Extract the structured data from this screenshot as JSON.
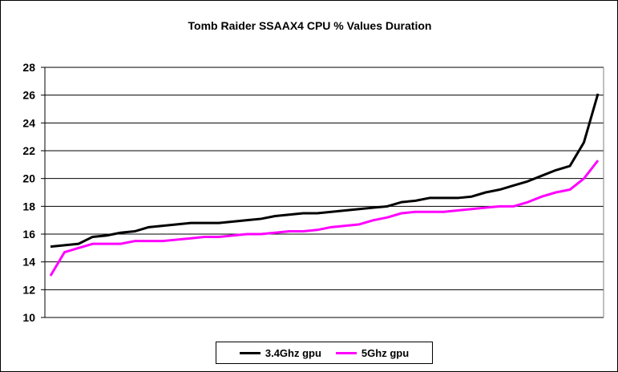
{
  "chart_data": {
    "type": "line",
    "title": "Tomb Raider SSAAX4 CPU % Values Duration",
    "xlabel": "",
    "ylabel": "",
    "ylim": [
      10,
      28
    ],
    "yticks": [
      "10",
      "12",
      "14",
      "16",
      "18",
      "20",
      "22",
      "24",
      "26",
      "28"
    ],
    "grid": true,
    "legend_position": "bottom",
    "series": [
      {
        "name": "3.4Ghz gpu",
        "color": "#000000",
        "values": [
          15.1,
          15.2,
          15.3,
          15.8,
          15.9,
          16.1,
          16.2,
          16.5,
          16.6,
          16.7,
          16.8,
          16.8,
          16.8,
          16.9,
          17.0,
          17.1,
          17.3,
          17.4,
          17.5,
          17.5,
          17.6,
          17.7,
          17.8,
          17.9,
          18.0,
          18.3,
          18.4,
          18.6,
          18.6,
          18.6,
          18.7,
          19.0,
          19.2,
          19.5,
          19.8,
          20.2,
          20.6,
          20.9,
          22.6,
          26.1
        ]
      },
      {
        "name": "5Ghz gpu",
        "color": "#FF00FF",
        "values": [
          13.0,
          14.7,
          15.0,
          15.3,
          15.3,
          15.3,
          15.5,
          15.5,
          15.5,
          15.6,
          15.7,
          15.8,
          15.8,
          15.9,
          16.0,
          16.0,
          16.1,
          16.2,
          16.2,
          16.3,
          16.5,
          16.6,
          16.7,
          17.0,
          17.2,
          17.5,
          17.6,
          17.6,
          17.6,
          17.7,
          17.8,
          17.9,
          18.0,
          18.0,
          18.3,
          18.7,
          19.0,
          19.2,
          20.0,
          21.3
        ]
      }
    ]
  }
}
